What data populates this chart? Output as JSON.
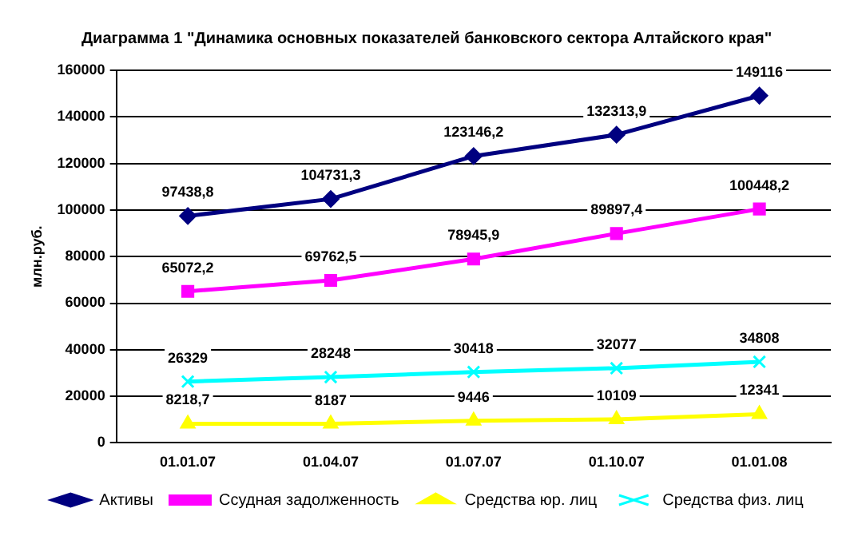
{
  "chart_data": {
    "type": "line",
    "title": "Диаграмма 1 \"Динамика основных показателей банковского сектора Алтайского края\"",
    "ylabel": "млн.руб.",
    "categories": [
      "01.01.07",
      "01.04.07",
      "01.07.07",
      "01.10.07",
      "01.01.08"
    ],
    "series": [
      {
        "name": "Активы",
        "color": "#000080",
        "marker": "diamond",
        "values": [
          97438.8,
          104731.3,
          123146.2,
          132313.9,
          149116
        ],
        "value_labels": [
          "97438,8",
          "104731,3",
          "123146,2",
          "132313,9",
          "149116"
        ]
      },
      {
        "name": "Ссудная задолженность",
        "color": "#ff00ff",
        "marker": "square",
        "values": [
          65072.2,
          69762.5,
          78945.9,
          89897.4,
          100448.2
        ],
        "value_labels": [
          "65072,2",
          "69762,5",
          "78945,9",
          "89897,4",
          "100448,2"
        ]
      },
      {
        "name": "Средства юр. лиц",
        "color": "#ffff00",
        "marker": "triangle",
        "values": [
          8218.7,
          8187,
          9446,
          10109,
          12341
        ],
        "value_labels": [
          "8218,7",
          "8187",
          "9446",
          "10109",
          "12341"
        ]
      },
      {
        "name": "Средства физ. лиц",
        "color": "#00ffff",
        "marker": "cross",
        "values": [
          26329,
          28248,
          30418,
          32077,
          34808
        ],
        "value_labels": [
          "26329",
          "28248",
          "30418",
          "32077",
          "34808"
        ]
      }
    ],
    "ylim": [
      0,
      160000
    ],
    "yticks": [
      0,
      20000,
      40000,
      60000,
      80000,
      100000,
      120000,
      140000,
      160000
    ],
    "grid": "y",
    "legend": "bottom",
    "line_style": "solid"
  }
}
